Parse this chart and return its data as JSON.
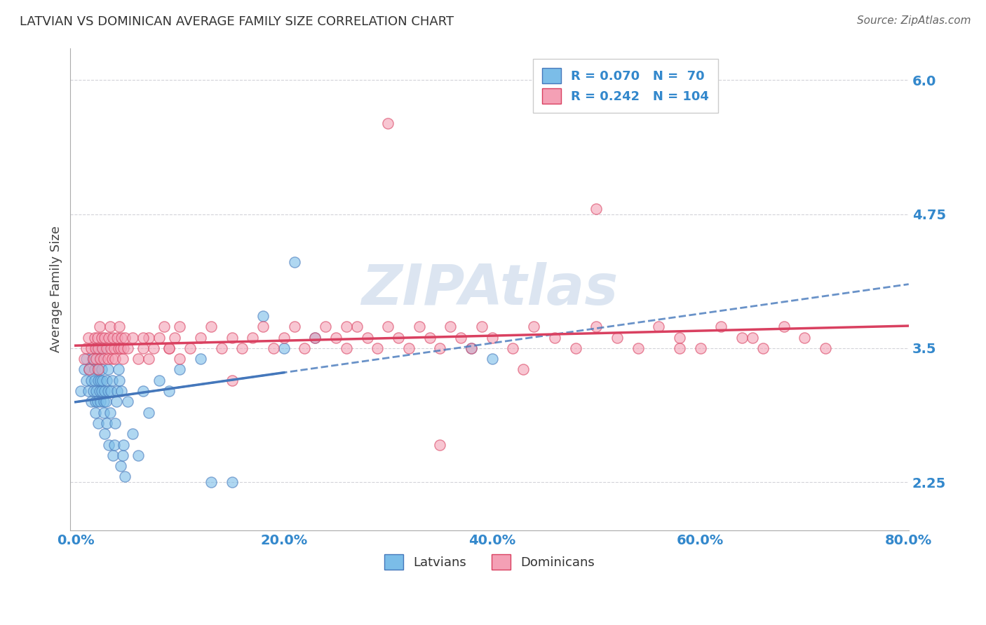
{
  "title": "LATVIAN VS DOMINICAN AVERAGE FAMILY SIZE CORRELATION CHART",
  "source": "Source: ZipAtlas.com",
  "ylabel": "Average Family Size",
  "xlim": [
    -0.005,
    0.8
  ],
  "ylim": [
    1.8,
    6.3
  ],
  "yticks": [
    2.25,
    3.5,
    4.75,
    6.0
  ],
  "xticks": [
    0.0,
    0.2,
    0.4,
    0.6,
    0.8
  ],
  "xticklabels": [
    "0.0%",
    "20.0%",
    "40.0%",
    "60.0%",
    "80.0%"
  ],
  "legend_latvians": "Latvians",
  "legend_dominicans": "Dominicans",
  "latvian_R": 0.07,
  "latvian_N": 70,
  "dominican_R": 0.242,
  "dominican_N": 104,
  "latvian_color": "#7bbde8",
  "dominican_color": "#f4a0b5",
  "latvian_line_color": "#4477bb",
  "dominican_line_color": "#d94060",
  "background": "#ffffff",
  "grid_color": "#c8c8d0",
  "title_color": "#333333",
  "axis_label_color": "#444444",
  "tick_label_color": "#3388cc",
  "source_color": "#555555",
  "watermark_color": "#c5d5e8",
  "latvian_scatter_x": [
    0.005,
    0.008,
    0.01,
    0.01,
    0.012,
    0.013,
    0.015,
    0.015,
    0.016,
    0.017,
    0.018,
    0.018,
    0.019,
    0.019,
    0.02,
    0.02,
    0.021,
    0.021,
    0.022,
    0.022,
    0.023,
    0.023,
    0.024,
    0.024,
    0.025,
    0.025,
    0.026,
    0.026,
    0.027,
    0.027,
    0.028,
    0.028,
    0.029,
    0.03,
    0.03,
    0.031,
    0.031,
    0.032,
    0.033,
    0.034,
    0.035,
    0.036,
    0.037,
    0.038,
    0.039,
    0.04,
    0.041,
    0.042,
    0.043,
    0.044,
    0.045,
    0.046,
    0.047,
    0.05,
    0.055,
    0.06,
    0.065,
    0.07,
    0.08,
    0.09,
    0.1,
    0.12,
    0.13,
    0.15,
    0.18,
    0.2,
    0.21,
    0.23,
    0.38,
    0.4
  ],
  "latvian_scatter_y": [
    3.1,
    3.3,
    3.2,
    3.4,
    3.1,
    3.3,
    3.2,
    3.0,
    3.4,
    3.1,
    3.3,
    3.2,
    3.0,
    2.9,
    3.1,
    3.5,
    3.3,
    3.0,
    3.2,
    2.8,
    3.1,
    3.4,
    3.2,
    3.0,
    3.3,
    3.1,
    3.5,
    3.2,
    3.0,
    2.9,
    3.1,
    2.7,
    3.0,
    3.2,
    2.8,
    3.1,
    3.3,
    2.6,
    2.9,
    3.1,
    3.2,
    2.5,
    2.6,
    2.8,
    3.0,
    3.1,
    3.3,
    3.2,
    2.4,
    3.1,
    2.5,
    2.6,
    2.3,
    3.0,
    2.7,
    2.5,
    3.1,
    2.9,
    3.2,
    3.1,
    3.3,
    3.4,
    2.25,
    2.25,
    3.8,
    3.5,
    4.3,
    3.6,
    3.5,
    3.4
  ],
  "dominican_scatter_x": [
    0.008,
    0.01,
    0.012,
    0.013,
    0.015,
    0.017,
    0.018,
    0.019,
    0.02,
    0.021,
    0.022,
    0.022,
    0.023,
    0.024,
    0.025,
    0.026,
    0.027,
    0.028,
    0.03,
    0.031,
    0.032,
    0.033,
    0.034,
    0.035,
    0.036,
    0.037,
    0.038,
    0.04,
    0.041,
    0.042,
    0.043,
    0.044,
    0.045,
    0.046,
    0.047,
    0.05,
    0.055,
    0.06,
    0.065,
    0.07,
    0.075,
    0.08,
    0.085,
    0.09,
    0.095,
    0.1,
    0.11,
    0.12,
    0.13,
    0.14,
    0.15,
    0.16,
    0.17,
    0.18,
    0.19,
    0.2,
    0.21,
    0.22,
    0.23,
    0.24,
    0.25,
    0.26,
    0.27,
    0.28,
    0.29,
    0.3,
    0.31,
    0.32,
    0.33,
    0.34,
    0.35,
    0.36,
    0.37,
    0.38,
    0.39,
    0.4,
    0.42,
    0.44,
    0.46,
    0.48,
    0.5,
    0.52,
    0.54,
    0.56,
    0.58,
    0.6,
    0.62,
    0.64,
    0.66,
    0.68,
    0.7,
    0.72,
    0.3,
    0.5,
    0.26,
    0.1,
    0.15,
    0.35,
    0.43,
    0.07,
    0.09,
    0.065,
    0.58,
    0.65
  ],
  "dominican_scatter_y": [
    3.4,
    3.5,
    3.6,
    3.3,
    3.5,
    3.4,
    3.6,
    3.5,
    3.4,
    3.6,
    3.5,
    3.3,
    3.7,
    3.4,
    3.6,
    3.5,
    3.4,
    3.6,
    3.5,
    3.4,
    3.6,
    3.7,
    3.5,
    3.4,
    3.6,
    3.5,
    3.4,
    3.6,
    3.5,
    3.7,
    3.5,
    3.6,
    3.4,
    3.5,
    3.6,
    3.5,
    3.6,
    3.4,
    3.5,
    3.6,
    3.5,
    3.6,
    3.7,
    3.5,
    3.6,
    3.4,
    3.5,
    3.6,
    3.7,
    3.5,
    3.6,
    3.5,
    3.6,
    3.7,
    3.5,
    3.6,
    3.7,
    3.5,
    3.6,
    3.7,
    3.6,
    3.5,
    3.7,
    3.6,
    3.5,
    3.7,
    3.6,
    3.5,
    3.7,
    3.6,
    3.5,
    3.7,
    3.6,
    3.5,
    3.7,
    3.6,
    3.5,
    3.7,
    3.6,
    3.5,
    3.7,
    3.6,
    3.5,
    3.7,
    3.6,
    3.5,
    3.7,
    3.6,
    3.5,
    3.7,
    3.6,
    3.5,
    5.6,
    4.8,
    3.7,
    3.7,
    3.2,
    2.6,
    3.3,
    3.4,
    3.5,
    3.6,
    3.5,
    3.6
  ],
  "latvian_line_xmax": 0.2,
  "dominican_line_xmax": 0.8
}
